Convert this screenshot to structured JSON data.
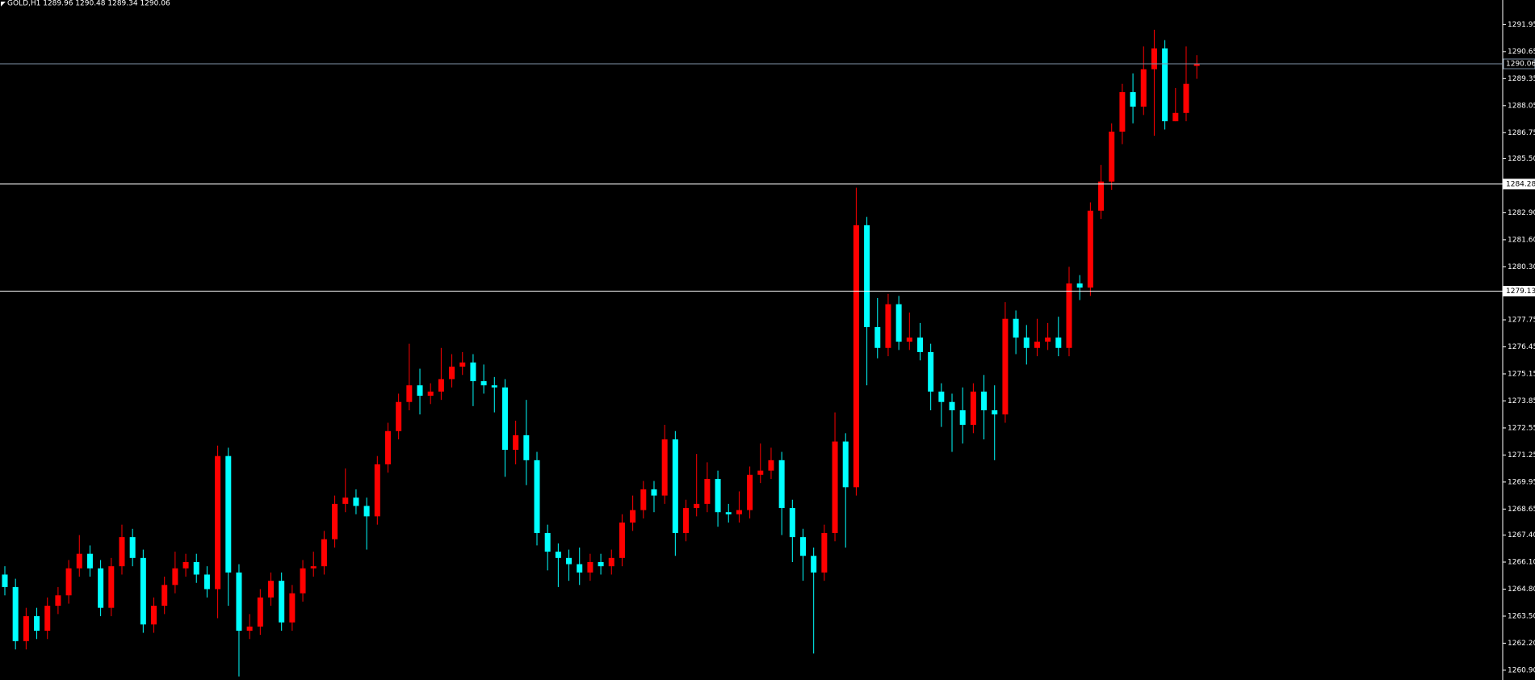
{
  "chart_data": {
    "type": "candlestick",
    "title": "GOLD,H1  1289.96 1290.48 1289.34 1290.06",
    "up_color": "#ff0000",
    "down_color": "#00ffff",
    "ylim": [
      1260.43,
      1293.13
    ],
    "yticks": [
      1291.95,
      1290.65,
      1289.35,
      1288.05,
      1286.75,
      {
        "value": 1285.5,
        "label": "1285.50"
      },
      {
        "value": 1282.9,
        "label": "1282.90"
      },
      {
        "value": 1281.6,
        "label": "1281.60"
      },
      {
        "value": 1280.3,
        "label": "1280.30"
      },
      1277.75,
      1276.45,
      1275.15,
      1273.85,
      1272.55,
      1271.25,
      1269.95,
      1268.65,
      {
        "value": 1267.4,
        "label": "1267.40"
      },
      {
        "value": 1266.1,
        "label": "1266.10"
      },
      {
        "value": 1264.8,
        "label": "1264.80"
      },
      {
        "value": 1263.5,
        "label": "1263.50"
      },
      {
        "value": 1262.2,
        "label": "1262.20"
      },
      {
        "value": 1260.9,
        "label": "1260.90"
      }
    ],
    "levels": [
      1290.06,
      1284.28,
      1279.13
    ],
    "level_colors": [
      "#7f93a8",
      "#ffffff",
      "#ffffff"
    ],
    "open": [
      1265.5,
      1264.9,
      1262.3,
      1263.5,
      1262.8,
      1264.0,
      1264.5,
      1265.8,
      1266.5,
      1265.8,
      1263.9,
      1265.9,
      1267.3,
      1266.3,
      1263.1,
      1264.0,
      1265.0,
      1265.8,
      1266.1,
      1265.5,
      1264.8,
      1271.2,
      1265.6,
      1262.8,
      1263.0,
      1264.4,
      1265.2,
      1263.2,
      1264.6,
      1265.8,
      1265.9,
      1267.2,
      1268.9,
      1269.2,
      1268.8,
      1268.3,
      1270.8,
      1272.4,
      1273.8,
      1274.6,
      1274.1,
      1274.3,
      1274.9,
      1275.5,
      1275.7,
      1274.8,
      1274.6,
      1274.5,
      1271.5,
      1272.2,
      1271.0,
      1267.5,
      1266.6,
      1266.3,
      1266.0,
      1265.6,
      1266.1,
      1265.9,
      1266.3,
      1268.0,
      1268.6,
      1269.6,
      1269.3,
      1272.0,
      1267.5,
      1268.7,
      1268.9,
      1270.1,
      1268.5,
      1268.4,
      1268.6,
      1270.3,
      1270.5,
      1271.0,
      1268.7,
      1267.3,
      1266.4,
      1265.6,
      1267.5,
      1271.9,
      1269.7,
      1282.3,
      1277.4,
      1276.4,
      1278.5,
      1276.7,
      1276.9,
      1276.2,
      1274.3,
      1273.8,
      1273.4,
      1272.7,
      1274.3,
      1273.4,
      1273.2,
      1277.8,
      1276.9,
      1276.4,
      1276.7,
      1276.9,
      1276.4,
      1279.5,
      1279.3,
      1283.0,
      1284.4,
      1286.8,
      1288.7,
      1288.0,
      1289.8,
      1290.8,
      1287.3,
      1287.7,
      1289.96
    ],
    "high": [
      1265.9,
      1265.3,
      1263.9,
      1263.9,
      1264.4,
      1264.9,
      1266.2,
      1267.4,
      1266.9,
      1266.2,
      1266.3,
      1267.9,
      1267.7,
      1266.7,
      1264.4,
      1265.4,
      1266.6,
      1266.5,
      1266.5,
      1265.9,
      1271.7,
      1271.6,
      1266.0,
      1263.6,
      1264.8,
      1265.6,
      1265.6,
      1265.0,
      1266.2,
      1266.6,
      1267.6,
      1269.3,
      1270.6,
      1269.6,
      1269.2,
      1271.2,
      1272.8,
      1274.2,
      1276.6,
      1275.4,
      1274.7,
      1276.4,
      1276.1,
      1276.2,
      1276.1,
      1275.6,
      1275.0,
      1274.9,
      1272.9,
      1273.9,
      1271.4,
      1267.9,
      1267.0,
      1266.7,
      1266.8,
      1266.5,
      1266.5,
      1266.7,
      1268.4,
      1269.3,
      1270.0,
      1270.0,
      1272.7,
      1272.4,
      1269.1,
      1271.3,
      1270.9,
      1270.5,
      1268.9,
      1269.5,
      1270.7,
      1271.8,
      1271.6,
      1271.4,
      1269.1,
      1267.7,
      1266.8,
      1267.9,
      1273.3,
      1272.3,
      1284.1,
      1282.7,
      1278.8,
      1279.0,
      1278.9,
      1278.1,
      1277.6,
      1276.6,
      1274.7,
      1274.2,
      1274.5,
      1274.7,
      1275.1,
      1274.6,
      1278.6,
      1278.2,
      1277.5,
      1277.8,
      1277.6,
      1277.9,
      1280.3,
      1279.9,
      1283.4,
      1285.2,
      1287.2,
      1289.1,
      1289.6,
      1290.9,
      1291.7,
      1291.2,
      1288.9,
      1290.9,
      1290.48
    ],
    "low": [
      1264.5,
      1261.9,
      1261.9,
      1262.4,
      1262.4,
      1263.6,
      1264.1,
      1265.4,
      1265.4,
      1263.5,
      1263.5,
      1265.5,
      1265.9,
      1262.7,
      1262.7,
      1263.6,
      1264.6,
      1265.4,
      1265.1,
      1264.4,
      1263.4,
      1264.0,
      1260.6,
      1262.4,
      1262.6,
      1264.0,
      1262.8,
      1262.8,
      1264.2,
      1265.4,
      1265.5,
      1266.8,
      1268.5,
      1268.4,
      1266.7,
      1267.9,
      1270.4,
      1272.0,
      1273.4,
      1273.2,
      1273.7,
      1273.9,
      1274.5,
      1275.1,
      1273.6,
      1274.2,
      1273.3,
      1270.2,
      1270.8,
      1269.8,
      1266.9,
      1265.7,
      1264.9,
      1265.2,
      1265.0,
      1265.2,
      1265.5,
      1265.5,
      1265.9,
      1267.6,
      1268.2,
      1268.5,
      1268.9,
      1266.4,
      1267.1,
      1268.3,
      1268.5,
      1267.8,
      1268.0,
      1268.0,
      1268.2,
      1269.9,
      1270.1,
      1267.4,
      1266.1,
      1265.2,
      1261.7,
      1265.2,
      1267.1,
      1266.8,
      1269.3,
      1274.6,
      1275.9,
      1276.0,
      1276.3,
      1276.3,
      1275.8,
      1273.4,
      1272.6,
      1271.4,
      1271.8,
      1272.3,
      1272.0,
      1271.0,
      1272.8,
      1276.1,
      1275.6,
      1276.0,
      1276.3,
      1276.0,
      1276.0,
      1278.7,
      1278.9,
      1282.6,
      1284.0,
      1286.2,
      1287.2,
      1287.6,
      1286.6,
      1286.9,
      1287.3,
      1287.3,
      1289.34
    ],
    "close": [
      1264.9,
      1262.3,
      1263.5,
      1262.8,
      1264.0,
      1264.5,
      1265.8,
      1266.5,
      1265.8,
      1263.9,
      1265.9,
      1267.3,
      1266.3,
      1263.1,
      1264.0,
      1265.0,
      1265.8,
      1266.1,
      1265.5,
      1264.8,
      1271.2,
      1265.6,
      1262.8,
      1263.0,
      1264.4,
      1265.2,
      1263.2,
      1264.6,
      1265.8,
      1265.9,
      1267.2,
      1268.9,
      1269.2,
      1268.8,
      1268.3,
      1270.8,
      1272.4,
      1273.8,
      1274.6,
      1274.1,
      1274.3,
      1274.9,
      1275.5,
      1275.7,
      1274.8,
      1274.6,
      1274.5,
      1271.5,
      1272.2,
      1271.0,
      1267.5,
      1266.6,
      1266.3,
      1266.0,
      1265.6,
      1266.1,
      1265.9,
      1266.3,
      1268.0,
      1268.6,
      1269.6,
      1269.3,
      1272.0,
      1267.5,
      1268.7,
      1268.9,
      1270.1,
      1268.5,
      1268.4,
      1268.6,
      1270.3,
      1270.5,
      1271.0,
      1268.7,
      1267.3,
      1266.4,
      1265.6,
      1267.5,
      1271.9,
      1269.7,
      1282.3,
      1277.4,
      1276.4,
      1278.5,
      1276.7,
      1276.9,
      1276.2,
      1274.3,
      1273.8,
      1273.4,
      1272.7,
      1274.3,
      1273.4,
      1273.2,
      1277.8,
      1276.9,
      1276.4,
      1276.7,
      1276.9,
      1276.4,
      1279.5,
      1279.3,
      1283.0,
      1284.4,
      1286.8,
      1288.7,
      1288.0,
      1289.8,
      1290.8,
      1287.3,
      1287.7,
      1289.1,
      1290.06
    ]
  }
}
